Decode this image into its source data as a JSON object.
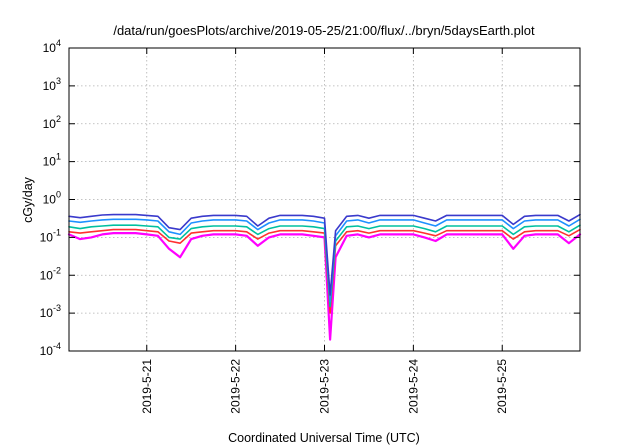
{
  "chart_data": {
    "type": "line",
    "title": "/data/run/goesPlots/archive/2019-05-25/21:00/flux/../bryn/5daysEarth.plot",
    "xlabel": "Coordinated Universal Time (UTC)",
    "ylabel": "cGy/day",
    "yscale": "log",
    "ylim": [
      0.0001,
      10000
    ],
    "xlim": [
      "2019-05-20 03:00",
      "2019-05-25 21:00"
    ],
    "x_ticks": [
      "2019-5-21",
      "2019-5-22",
      "2019-5-23",
      "2019-5-24",
      "2019-5-25"
    ],
    "y_ticks": [
      {
        "base": "10",
        "exp": "-4",
        "value": 0.0001
      },
      {
        "base": "10",
        "exp": "-3",
        "value": 0.001
      },
      {
        "base": "10",
        "exp": "-2",
        "value": 0.01
      },
      {
        "base": "10",
        "exp": "-1",
        "value": 0.1
      },
      {
        "base": "10",
        "exp": "0",
        "value": 1
      },
      {
        "base": "10",
        "exp": "1",
        "value": 10
      },
      {
        "base": "10",
        "exp": "2",
        "value": 100
      },
      {
        "base": "10",
        "exp": "3",
        "value": 1000
      },
      {
        "base": "10",
        "exp": "4",
        "value": 10000
      }
    ],
    "grid": true,
    "legend": "none",
    "x": [
      "2019-05-20 03:00",
      "2019-05-20 06:00",
      "2019-05-20 09:00",
      "2019-05-20 12:00",
      "2019-05-20 15:00",
      "2019-05-20 18:00",
      "2019-05-20 21:00",
      "2019-05-21 00:00",
      "2019-05-21 03:00",
      "2019-05-21 06:00",
      "2019-05-21 09:00",
      "2019-05-21 12:00",
      "2019-05-21 15:00",
      "2019-05-21 18:00",
      "2019-05-21 21:00",
      "2019-05-22 00:00",
      "2019-05-22 03:00",
      "2019-05-22 06:00",
      "2019-05-22 09:00",
      "2019-05-22 12:00",
      "2019-05-22 15:00",
      "2019-05-22 18:00",
      "2019-05-22 21:00",
      "2019-05-23 00:00",
      "2019-05-23 01:30",
      "2019-05-23 03:00",
      "2019-05-23 06:00",
      "2019-05-23 09:00",
      "2019-05-23 12:00",
      "2019-05-23 15:00",
      "2019-05-23 18:00",
      "2019-05-23 21:00",
      "2019-05-24 00:00",
      "2019-05-24 03:00",
      "2019-05-24 06:00",
      "2019-05-24 09:00",
      "2019-05-24 12:00",
      "2019-05-24 15:00",
      "2019-05-24 18:00",
      "2019-05-24 21:00",
      "2019-05-25 00:00",
      "2019-05-25 03:00",
      "2019-05-25 06:00",
      "2019-05-25 09:00",
      "2019-05-25 12:00",
      "2019-05-25 15:00",
      "2019-05-25 18:00",
      "2019-05-25 21:00"
    ],
    "series": [
      {
        "color": "#ff00ff",
        "values": [
          0.12,
          0.09,
          0.1,
          0.12,
          0.13,
          0.13,
          0.13,
          0.12,
          0.11,
          0.05,
          0.03,
          0.09,
          0.11,
          0.12,
          0.12,
          0.12,
          0.11,
          0.06,
          0.1,
          0.12,
          0.12,
          0.12,
          0.11,
          0.1,
          0.0002,
          0.03,
          0.11,
          0.12,
          0.1,
          0.12,
          0.12,
          0.12,
          0.12,
          0.1,
          0.08,
          0.12,
          0.12,
          0.12,
          0.12,
          0.12,
          0.12,
          0.05,
          0.11,
          0.12,
          0.12,
          0.12,
          0.07,
          0.12
        ]
      },
      {
        "color": "#ff3030",
        "values": [
          0.14,
          0.13,
          0.14,
          0.15,
          0.16,
          0.16,
          0.16,
          0.15,
          0.14,
          0.08,
          0.07,
          0.13,
          0.14,
          0.15,
          0.15,
          0.15,
          0.14,
          0.09,
          0.13,
          0.15,
          0.15,
          0.15,
          0.14,
          0.13,
          0.001,
          0.06,
          0.14,
          0.15,
          0.13,
          0.15,
          0.15,
          0.15,
          0.15,
          0.13,
          0.11,
          0.15,
          0.15,
          0.15,
          0.15,
          0.15,
          0.15,
          0.09,
          0.14,
          0.15,
          0.15,
          0.15,
          0.11,
          0.16
        ]
      },
      {
        "color": "#00c0a0",
        "values": [
          0.19,
          0.17,
          0.19,
          0.2,
          0.21,
          0.21,
          0.21,
          0.2,
          0.19,
          0.1,
          0.09,
          0.17,
          0.19,
          0.2,
          0.2,
          0.2,
          0.19,
          0.12,
          0.17,
          0.2,
          0.2,
          0.2,
          0.19,
          0.17,
          0.0015,
          0.08,
          0.19,
          0.2,
          0.17,
          0.2,
          0.2,
          0.2,
          0.2,
          0.17,
          0.14,
          0.2,
          0.2,
          0.2,
          0.2,
          0.2,
          0.2,
          0.12,
          0.19,
          0.2,
          0.2,
          0.2,
          0.14,
          0.21
        ]
      },
      {
        "color": "#1e90ff",
        "values": [
          0.27,
          0.25,
          0.27,
          0.29,
          0.3,
          0.3,
          0.3,
          0.29,
          0.27,
          0.14,
          0.12,
          0.24,
          0.27,
          0.29,
          0.29,
          0.29,
          0.27,
          0.16,
          0.24,
          0.29,
          0.29,
          0.29,
          0.27,
          0.24,
          0.002,
          0.11,
          0.27,
          0.29,
          0.24,
          0.29,
          0.29,
          0.29,
          0.29,
          0.24,
          0.2,
          0.29,
          0.29,
          0.29,
          0.29,
          0.29,
          0.29,
          0.17,
          0.27,
          0.29,
          0.29,
          0.29,
          0.2,
          0.3
        ]
      },
      {
        "color": "#3a3acc",
        "values": [
          0.36,
          0.33,
          0.36,
          0.39,
          0.4,
          0.4,
          0.4,
          0.38,
          0.36,
          0.18,
          0.16,
          0.32,
          0.36,
          0.38,
          0.38,
          0.38,
          0.36,
          0.2,
          0.32,
          0.38,
          0.38,
          0.38,
          0.36,
          0.32,
          0.003,
          0.15,
          0.36,
          0.38,
          0.32,
          0.38,
          0.38,
          0.38,
          0.38,
          0.32,
          0.27,
          0.38,
          0.38,
          0.38,
          0.38,
          0.38,
          0.38,
          0.22,
          0.36,
          0.38,
          0.38,
          0.38,
          0.27,
          0.4
        ]
      }
    ]
  }
}
